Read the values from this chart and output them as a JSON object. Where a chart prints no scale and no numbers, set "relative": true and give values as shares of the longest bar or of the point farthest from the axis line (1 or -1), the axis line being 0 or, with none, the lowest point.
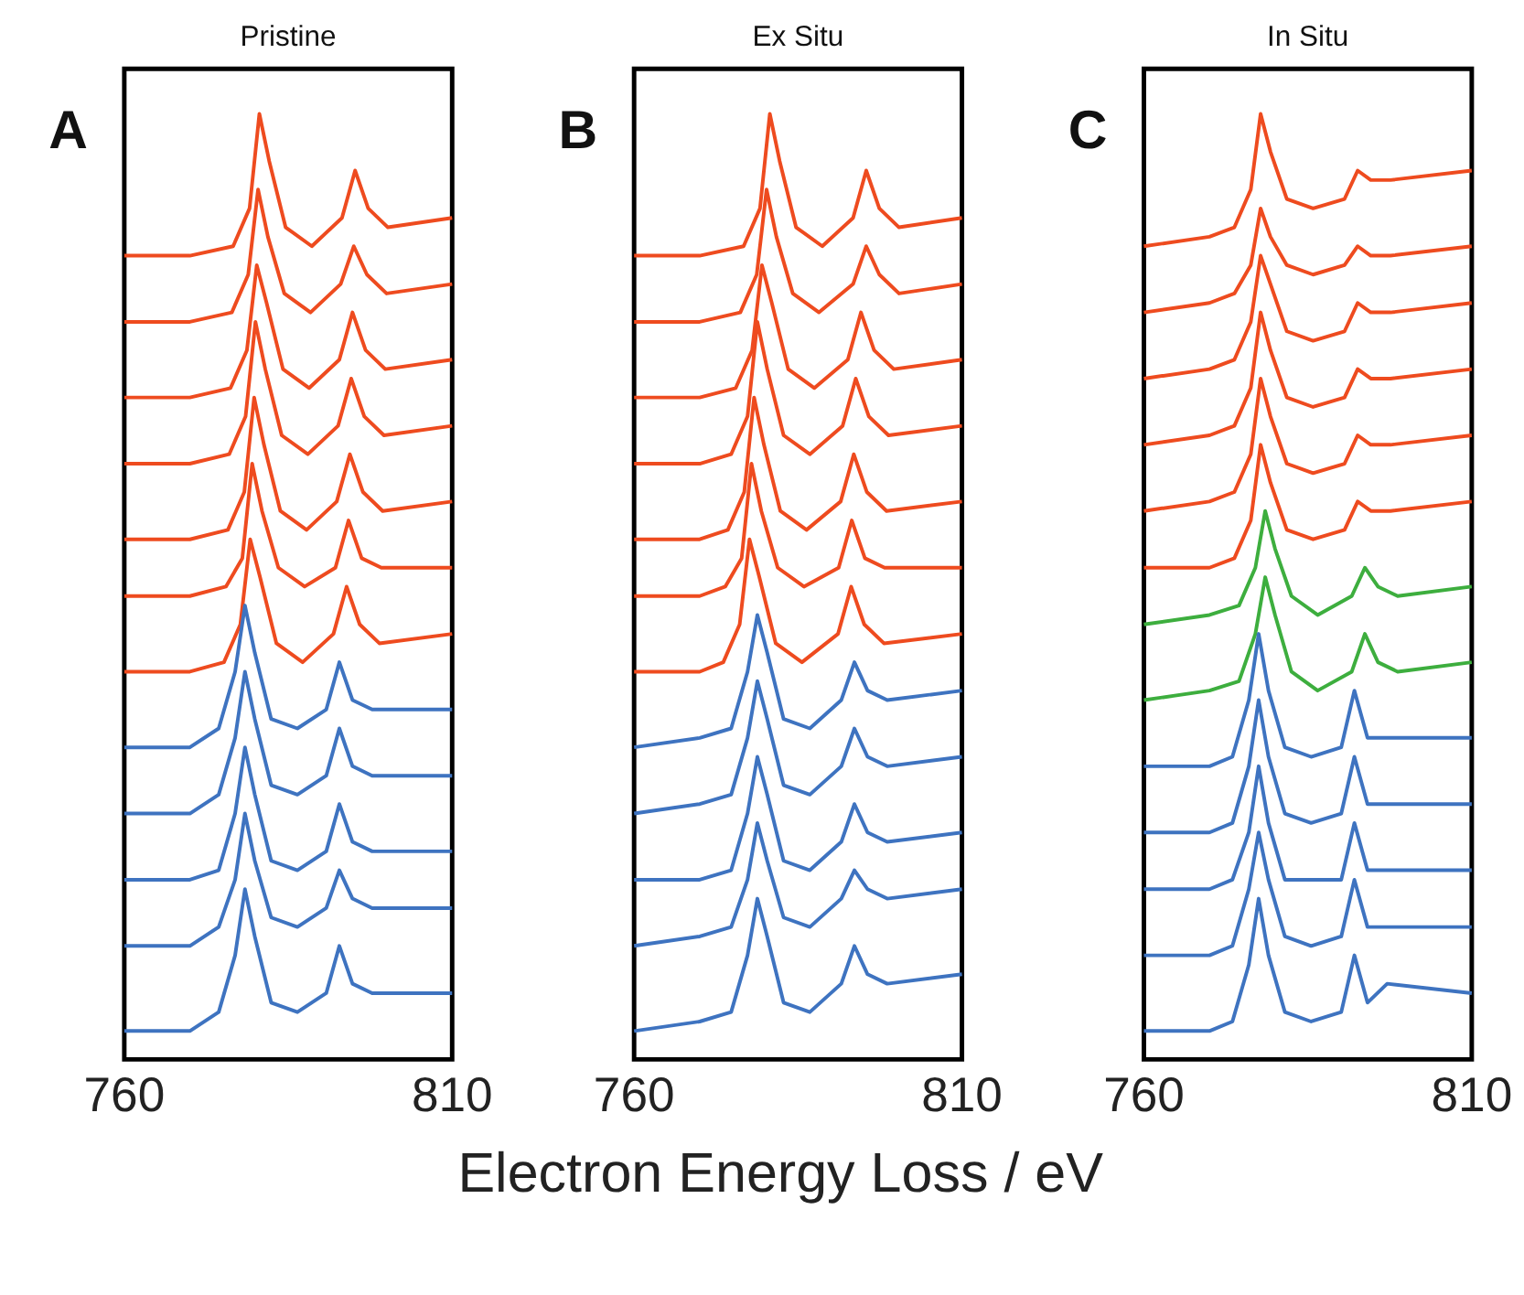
{
  "chart_data": [
    {
      "type": "line",
      "title": "Pristine",
      "annotations": [
        "A"
      ],
      "relative": true,
      "xlim": [
        760,
        810
      ],
      "xticks": [
        760,
        810
      ],
      "tick_labels": "x",
      "series": [
        {
          "color": "#ee4b1f",
          "x": [
            760,
            770,
            776.6,
            779.1,
            780.6,
            782.1,
            784.6,
            788.6,
            793.2,
            795.2,
            797.2,
            800.2,
            810
          ],
          "values": [
            0.85,
            0.85,
            0.86,
            0.9,
            1.0,
            0.95,
            0.88,
            0.86,
            0.89,
            0.94,
            0.9,
            0.88,
            0.89
          ]
        },
        {
          "color": "#ee4b1f",
          "x": [
            760,
            770,
            776.4,
            778.9,
            780.4,
            781.9,
            784.4,
            788.4,
            793,
            795,
            797,
            800,
            810
          ],
          "values": [
            0.78,
            0.78,
            0.79,
            0.83,
            0.92,
            0.87,
            0.81,
            0.79,
            0.82,
            0.86,
            0.83,
            0.81,
            0.82
          ]
        },
        {
          "color": "#ee4b1f",
          "x": [
            760,
            770,
            776.2,
            778.7,
            780.2,
            781.7,
            784.2,
            788.2,
            792.8,
            794.8,
            796.8,
            799.8,
            810
          ],
          "values": [
            0.7,
            0.7,
            0.71,
            0.75,
            0.84,
            0.8,
            0.73,
            0.71,
            0.74,
            0.79,
            0.75,
            0.73,
            0.74
          ]
        },
        {
          "color": "#ee4b1f",
          "x": [
            760,
            770,
            776,
            778.5,
            780,
            781.5,
            784,
            788,
            792.6,
            794.6,
            796.6,
            799.6,
            810
          ],
          "values": [
            0.63,
            0.63,
            0.64,
            0.68,
            0.78,
            0.73,
            0.66,
            0.64,
            0.67,
            0.72,
            0.68,
            0.66,
            0.67
          ]
        },
        {
          "color": "#ee4b1f",
          "x": [
            760,
            770,
            775.8,
            778.3,
            779.8,
            781.3,
            783.8,
            787.8,
            792.4,
            794.4,
            796.4,
            799.4,
            810
          ],
          "values": [
            0.55,
            0.55,
            0.56,
            0.6,
            0.7,
            0.65,
            0.58,
            0.56,
            0.59,
            0.64,
            0.6,
            0.58,
            0.59
          ]
        },
        {
          "color": "#ee4b1f",
          "x": [
            760,
            770,
            775.5,
            778,
            779.5,
            781,
            783.5,
            787.5,
            792.2,
            794.2,
            796.2,
            799.2,
            810
          ],
          "values": [
            0.49,
            0.49,
            0.5,
            0.53,
            0.63,
            0.58,
            0.52,
            0.5,
            0.52,
            0.57,
            0.53,
            0.52,
            0.52
          ]
        },
        {
          "color": "#ee4b1f",
          "x": [
            760,
            770,
            775.2,
            777.7,
            779.2,
            780.7,
            783.2,
            787.2,
            791.9,
            793.9,
            795.9,
            798.9,
            810
          ],
          "values": [
            0.41,
            0.41,
            0.42,
            0.46,
            0.55,
            0.51,
            0.44,
            0.42,
            0.45,
            0.5,
            0.46,
            0.44,
            0.45
          ]
        },
        {
          "color": "#3e73c0",
          "x": [
            760,
            770,
            774.4,
            776.9,
            778.4,
            779.9,
            782.4,
            786.4,
            790.8,
            792.8,
            794.8,
            797.8,
            810
          ],
          "values": [
            0.33,
            0.33,
            0.35,
            0.41,
            0.48,
            0.43,
            0.36,
            0.35,
            0.37,
            0.42,
            0.38,
            0.37,
            0.37
          ]
        },
        {
          "color": "#3e73c0",
          "x": [
            760,
            770,
            774.4,
            776.9,
            778.4,
            779.9,
            782.4,
            786.4,
            790.8,
            792.8,
            794.8,
            797.8,
            810
          ],
          "values": [
            0.26,
            0.26,
            0.28,
            0.34,
            0.41,
            0.36,
            0.29,
            0.28,
            0.3,
            0.35,
            0.31,
            0.3,
            0.3
          ]
        },
        {
          "color": "#3e73c0",
          "x": [
            760,
            770,
            774.4,
            776.9,
            778.4,
            779.9,
            782.4,
            786.4,
            790.8,
            792.8,
            794.8,
            797.8,
            810
          ],
          "values": [
            0.19,
            0.19,
            0.2,
            0.26,
            0.33,
            0.28,
            0.21,
            0.2,
            0.22,
            0.27,
            0.23,
            0.22,
            0.22
          ]
        },
        {
          "color": "#3e73c0",
          "x": [
            760,
            770,
            774.4,
            776.9,
            778.4,
            779.9,
            782.4,
            786.4,
            790.8,
            792.8,
            794.8,
            797.8,
            810
          ],
          "values": [
            0.12,
            0.12,
            0.14,
            0.19,
            0.26,
            0.21,
            0.15,
            0.14,
            0.16,
            0.2,
            0.17,
            0.16,
            0.16
          ]
        },
        {
          "color": "#3e73c0",
          "x": [
            760,
            770,
            774.4,
            776.9,
            778.4,
            779.9,
            782.4,
            786.4,
            790.8,
            792.8,
            794.8,
            797.8,
            810
          ],
          "values": [
            0.03,
            0.03,
            0.05,
            0.11,
            0.18,
            0.13,
            0.06,
            0.05,
            0.07,
            0.12,
            0.08,
            0.07,
            0.07
          ]
        }
      ]
    },
    {
      "type": "line",
      "title": "Ex Situ",
      "annotations": [
        "B"
      ],
      "xlabel": "Electron Energy Loss / eV",
      "relative": true,
      "xlim": [
        760,
        810
      ],
      "xticks": [
        760,
        810
      ],
      "tick_labels": "x",
      "series": [
        {
          "color": "#ee4b1f",
          "x": [
            760,
            770,
            776.7,
            779.2,
            780.7,
            782.2,
            784.7,
            788.7,
            793.4,
            795.4,
            797.4,
            800.4,
            810
          ],
          "values": [
            0.85,
            0.85,
            0.86,
            0.9,
            1.0,
            0.95,
            0.88,
            0.86,
            0.89,
            0.94,
            0.9,
            0.88,
            0.89
          ]
        },
        {
          "color": "#ee4b1f",
          "x": [
            760,
            770,
            776.2,
            778.7,
            780.2,
            781.7,
            784.2,
            788.2,
            793.4,
            795.4,
            797.4,
            800.4,
            810
          ],
          "values": [
            0.78,
            0.78,
            0.79,
            0.83,
            0.92,
            0.87,
            0.81,
            0.79,
            0.82,
            0.86,
            0.83,
            0.81,
            0.82
          ]
        },
        {
          "color": "#ee4b1f",
          "x": [
            760,
            770,
            775.5,
            778,
            779.5,
            781,
            783.5,
            787.5,
            792.6,
            794.6,
            796.6,
            799.6,
            810
          ],
          "values": [
            0.7,
            0.7,
            0.71,
            0.75,
            0.84,
            0.8,
            0.73,
            0.71,
            0.74,
            0.79,
            0.75,
            0.73,
            0.74
          ]
        },
        {
          "color": "#ee4b1f",
          "x": [
            760,
            770,
            774.8,
            777.3,
            778.8,
            780.3,
            782.8,
            786.8,
            791.8,
            793.8,
            795.8,
            798.8,
            810
          ],
          "values": [
            0.63,
            0.63,
            0.64,
            0.68,
            0.78,
            0.73,
            0.66,
            0.64,
            0.67,
            0.72,
            0.68,
            0.66,
            0.67
          ]
        },
        {
          "color": "#ee4b1f",
          "x": [
            760,
            770,
            774.3,
            776.8,
            778.3,
            779.8,
            782.3,
            786.3,
            791.5,
            793.5,
            795.5,
            798.5,
            810
          ],
          "values": [
            0.55,
            0.55,
            0.56,
            0.6,
            0.7,
            0.65,
            0.58,
            0.56,
            0.59,
            0.64,
            0.6,
            0.58,
            0.59
          ]
        },
        {
          "color": "#ee4b1f",
          "x": [
            760,
            770,
            773.9,
            776.4,
            777.9,
            779.4,
            781.9,
            785.9,
            791.2,
            793.2,
            795.2,
            798.2,
            810
          ],
          "values": [
            0.49,
            0.49,
            0.5,
            0.53,
            0.63,
            0.58,
            0.52,
            0.5,
            0.52,
            0.57,
            0.53,
            0.52,
            0.52
          ]
        },
        {
          "color": "#ee4b1f",
          "x": [
            760,
            770,
            773.6,
            776.1,
            777.6,
            779.1,
            781.6,
            785.6,
            791.1,
            793.1,
            795.1,
            798.1,
            810
          ],
          "values": [
            0.41,
            0.41,
            0.42,
            0.46,
            0.55,
            0.51,
            0.44,
            0.42,
            0.45,
            0.5,
            0.46,
            0.44,
            0.45
          ]
        },
        {
          "color": "#3e73c0",
          "x": [
            760,
            770,
            774.8,
            777.3,
            778.8,
            780.3,
            782.8,
            786.8,
            791.6,
            793.6,
            795.6,
            798.6,
            810
          ],
          "values": [
            0.33,
            0.34,
            0.35,
            0.41,
            0.47,
            0.43,
            0.36,
            0.35,
            0.38,
            0.42,
            0.39,
            0.38,
            0.39
          ]
        },
        {
          "color": "#3e73c0",
          "x": [
            760,
            770,
            774.8,
            777.3,
            778.8,
            780.3,
            782.8,
            786.8,
            791.6,
            793.6,
            795.6,
            798.6,
            810
          ],
          "values": [
            0.26,
            0.27,
            0.28,
            0.34,
            0.4,
            0.36,
            0.29,
            0.28,
            0.31,
            0.35,
            0.32,
            0.31,
            0.32
          ]
        },
        {
          "color": "#3e73c0",
          "x": [
            760,
            770,
            774.8,
            777.3,
            778.8,
            780.3,
            782.8,
            786.8,
            791.6,
            793.6,
            795.6,
            798.6,
            810
          ],
          "values": [
            0.19,
            0.19,
            0.2,
            0.26,
            0.32,
            0.28,
            0.21,
            0.2,
            0.23,
            0.27,
            0.24,
            0.23,
            0.24
          ]
        },
        {
          "color": "#3e73c0",
          "x": [
            760,
            770,
            774.8,
            777.3,
            778.8,
            780.3,
            782.8,
            786.8,
            791.6,
            793.6,
            795.6,
            798.6,
            810
          ],
          "values": [
            0.12,
            0.13,
            0.14,
            0.19,
            0.25,
            0.21,
            0.15,
            0.14,
            0.17,
            0.2,
            0.18,
            0.17,
            0.18
          ]
        },
        {
          "color": "#3e73c0",
          "x": [
            760,
            770,
            774.8,
            777.3,
            778.8,
            780.3,
            782.8,
            786.8,
            791.6,
            793.6,
            795.6,
            798.6,
            810
          ],
          "values": [
            0.03,
            0.04,
            0.05,
            0.11,
            0.17,
            0.13,
            0.06,
            0.05,
            0.08,
            0.12,
            0.09,
            0.08,
            0.09
          ]
        }
      ]
    },
    {
      "type": "line",
      "title": "In Situ",
      "annotations": [
        "C"
      ],
      "relative": true,
      "xlim": [
        760,
        810
      ],
      "xticks": [
        760,
        810
      ],
      "tick_labels": "x",
      "series": [
        {
          "color": "#ee4b1f",
          "x": [
            760,
            770,
            773.8,
            776.3,
            777.8,
            779.3,
            781.8,
            785.8,
            790.6,
            792.6,
            794.6,
            797.6,
            810
          ],
          "values": [
            0.86,
            0.87,
            0.88,
            0.92,
            1.0,
            0.96,
            0.91,
            0.9,
            0.91,
            0.94,
            0.93,
            0.93,
            0.94
          ]
        },
        {
          "color": "#ee4b1f",
          "x": [
            760,
            770,
            773.8,
            776.3,
            777.8,
            779.3,
            781.8,
            785.8,
            790.6,
            792.6,
            794.6,
            797.6,
            810
          ],
          "values": [
            0.79,
            0.8,
            0.81,
            0.84,
            0.9,
            0.87,
            0.84,
            0.83,
            0.84,
            0.86,
            0.85,
            0.85,
            0.86
          ]
        },
        {
          "color": "#ee4b1f",
          "x": [
            760,
            770,
            773.8,
            776.3,
            777.8,
            779.3,
            781.8,
            785.8,
            790.6,
            792.6,
            794.6,
            797.6,
            810
          ],
          "values": [
            0.72,
            0.73,
            0.74,
            0.78,
            0.85,
            0.82,
            0.77,
            0.76,
            0.77,
            0.8,
            0.79,
            0.79,
            0.8
          ]
        },
        {
          "color": "#ee4b1f",
          "x": [
            760,
            770,
            773.8,
            776.3,
            777.8,
            779.3,
            781.8,
            785.8,
            790.6,
            792.6,
            794.6,
            797.6,
            810
          ],
          "values": [
            0.65,
            0.66,
            0.67,
            0.71,
            0.79,
            0.75,
            0.7,
            0.69,
            0.7,
            0.73,
            0.72,
            0.72,
            0.73
          ]
        },
        {
          "color": "#ee4b1f",
          "x": [
            760,
            770,
            773.8,
            776.3,
            777.8,
            779.3,
            781.8,
            785.8,
            790.6,
            792.6,
            794.6,
            797.6,
            810
          ],
          "values": [
            0.58,
            0.59,
            0.6,
            0.64,
            0.72,
            0.68,
            0.63,
            0.62,
            0.63,
            0.66,
            0.65,
            0.65,
            0.66
          ]
        },
        {
          "color": "#ee4b1f",
          "x": [
            760,
            770,
            773.8,
            776.3,
            777.8,
            779.3,
            781.8,
            785.8,
            790.6,
            792.6,
            794.6,
            797.6,
            810
          ],
          "values": [
            0.52,
            0.52,
            0.53,
            0.57,
            0.65,
            0.61,
            0.56,
            0.55,
            0.56,
            0.59,
            0.58,
            0.58,
            0.59
          ]
        },
        {
          "color": "#3dae3e",
          "x": [
            760,
            770,
            774.5,
            777,
            778.5,
            780,
            782.5,
            786.5,
            791.7,
            793.7,
            795.7,
            798.7,
            810
          ],
          "values": [
            0.46,
            0.47,
            0.48,
            0.52,
            0.58,
            0.54,
            0.49,
            0.47,
            0.49,
            0.52,
            0.5,
            0.49,
            0.5
          ]
        },
        {
          "color": "#3dae3e",
          "x": [
            760,
            770,
            774.5,
            777,
            778.5,
            780,
            782.5,
            786.5,
            791.7,
            793.7,
            795.7,
            798.7,
            810
          ],
          "values": [
            0.38,
            0.39,
            0.4,
            0.45,
            0.51,
            0.47,
            0.41,
            0.39,
            0.41,
            0.45,
            0.42,
            0.41,
            0.42
          ]
        },
        {
          "color": "#3e73c0",
          "x": [
            760,
            770,
            773.5,
            776,
            777.5,
            779,
            781.5,
            785.5,
            790.1,
            792.1,
            794.1,
            797.1,
            810
          ],
          "values": [
            0.31,
            0.31,
            0.32,
            0.38,
            0.45,
            0.39,
            0.33,
            0.32,
            0.33,
            0.39,
            0.34,
            0.34,
            0.34
          ]
        },
        {
          "color": "#3e73c0",
          "x": [
            760,
            770,
            773.5,
            776,
            777.5,
            779,
            781.5,
            785.5,
            790.1,
            792.1,
            794.1,
            797.1,
            810
          ],
          "values": [
            0.24,
            0.24,
            0.25,
            0.31,
            0.38,
            0.32,
            0.26,
            0.25,
            0.26,
            0.32,
            0.27,
            0.27,
            0.27
          ]
        },
        {
          "color": "#3e73c0",
          "x": [
            760,
            770,
            773.5,
            776,
            777.5,
            779,
            781.5,
            785.5,
            790.1,
            792.1,
            794.1,
            797.1,
            810
          ],
          "values": [
            0.18,
            0.18,
            0.19,
            0.24,
            0.31,
            0.25,
            0.19,
            0.19,
            0.19,
            0.25,
            0.2,
            0.2,
            0.2
          ]
        },
        {
          "color": "#3e73c0",
          "x": [
            760,
            770,
            773.5,
            776,
            777.5,
            779,
            781.5,
            785.5,
            790.1,
            792.1,
            794.1,
            797.1,
            810
          ],
          "values": [
            0.11,
            0.11,
            0.12,
            0.18,
            0.24,
            0.19,
            0.13,
            0.12,
            0.13,
            0.19,
            0.14,
            0.14,
            0.14
          ]
        },
        {
          "color": "#3e73c0",
          "x": [
            760,
            770,
            773.5,
            776,
            777.5,
            779,
            781.5,
            785.5,
            790.1,
            792.1,
            794.1,
            797.1,
            810
          ],
          "values": [
            0.03,
            0.03,
            0.04,
            0.1,
            0.17,
            0.11,
            0.05,
            0.04,
            0.05,
            0.11,
            0.06,
            0.08,
            0.07
          ]
        }
      ]
    }
  ]
}
